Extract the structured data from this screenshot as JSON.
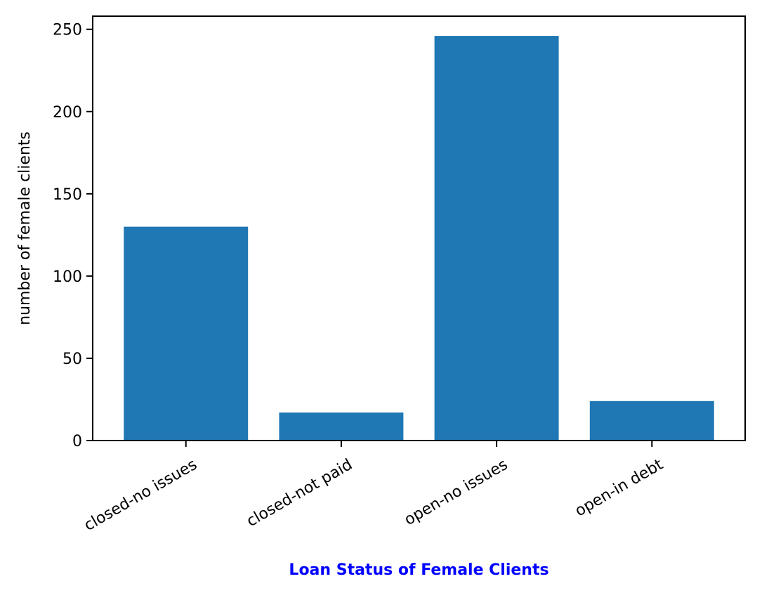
{
  "chart_data": {
    "type": "bar",
    "title": "",
    "xlabel": "Loan Status of Female Clients",
    "ylabel": "number of female clients",
    "categories": [
      "closed-no issues",
      "closed-not paid",
      "open-no issues",
      "open-in debt"
    ],
    "values": [
      130,
      17,
      246,
      24
    ],
    "ylim": [
      0,
      258
    ],
    "yticks": [
      0,
      50,
      100,
      150,
      200,
      250
    ],
    "grid": false,
    "bar_color": "#1f77b4",
    "xlabel_color": "#0000ff",
    "xtick_rotation": -30
  }
}
